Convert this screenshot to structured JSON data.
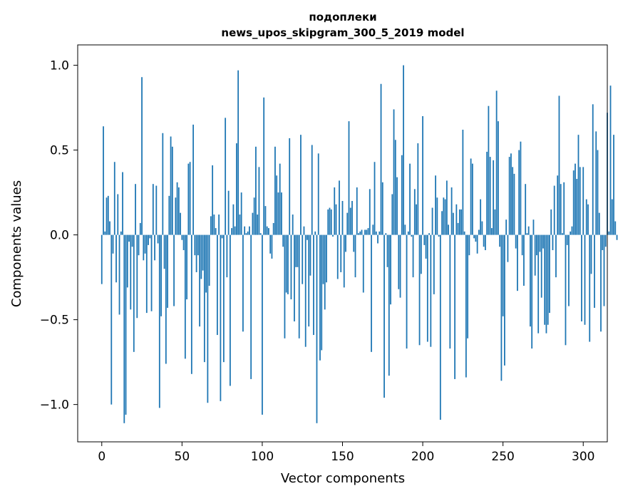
{
  "chart_data": {
    "type": "bar",
    "title": "подоплеки",
    "subtitle": "news_upos_skipgram_300_5_2019 model",
    "xlabel": "Vector components",
    "ylabel": "Components values",
    "xlim": [
      -15,
      315
    ],
    "ylim": [
      -1.22,
      1.12
    ],
    "x_ticks": [
      0,
      50,
      100,
      150,
      200,
      250,
      300
    ],
    "x_tick_labels": [
      "0",
      "50",
      "100",
      "150",
      "200",
      "250",
      "300"
    ],
    "y_ticks": [
      -1.0,
      -0.5,
      0.0,
      0.5,
      1.0
    ],
    "y_tick_labels": [
      "−1.0",
      "−0.5",
      "0.0",
      "0.5",
      "1.0"
    ],
    "grid": false,
    "bar_color": "#1f77b4",
    "series": [
      {
        "values": [
          -0.29,
          0.64,
          0.02,
          0.22,
          0.23,
          0.08,
          -1.0,
          -0.11,
          0.43,
          -0.28,
          0.24,
          -0.47,
          0.02,
          0.37,
          -1.11,
          -1.06,
          -0.31,
          -0.04,
          -0.44,
          -0.07,
          -0.69,
          0.3,
          -0.49,
          -0.12,
          0.07,
          0.93,
          -0.15,
          -0.11,
          -0.46,
          -0.06,
          -0.02,
          -0.45,
          0.3,
          -0.15,
          0.29,
          -0.05,
          -1.02,
          -0.48,
          0.6,
          -0.2,
          -0.76,
          -0.43,
          0.23,
          0.58,
          0.52,
          -0.42,
          0.22,
          0.31,
          0.28,
          0.13,
          -0.03,
          -0.09,
          -0.73,
          -0.38,
          0.42,
          0.43,
          -0.82,
          0.65,
          -0.12,
          -0.22,
          -0.12,
          -0.54,
          -0.26,
          -0.21,
          -0.75,
          -0.34,
          -0.99,
          -0.3,
          0.11,
          0.41,
          0.12,
          0.04,
          -0.59,
          0.12,
          -0.98,
          -0.02,
          -0.75,
          0.69,
          -0.25,
          0.26,
          -0.89,
          0.04,
          0.18,
          0.05,
          0.54,
          0.97,
          0.12,
          0.25,
          -0.57,
          0.05,
          0.01,
          0.02,
          0.05,
          -0.85,
          0.13,
          0.22,
          0.52,
          0.12,
          0.4,
          0.01,
          -1.06,
          0.81,
          0.17,
          0.05,
          0.04,
          -0.11,
          -0.14,
          0.07,
          0.52,
          0.35,
          0.25,
          0.42,
          0.25,
          -0.07,
          -0.61,
          -0.34,
          -0.35,
          0.57,
          -0.38,
          0.12,
          -0.51,
          -0.19,
          -0.19,
          -0.61,
          0.59,
          -0.29,
          0.05,
          -0.66,
          -0.03,
          -0.54,
          -0.24,
          0.53,
          -0.59,
          0.02,
          -1.11,
          0.48,
          -0.74,
          -0.68,
          -0.29,
          -0.44,
          -0.28,
          0.15,
          0.16,
          0.15,
          -0.01,
          0.28,
          0.18,
          -0.26,
          0.32,
          -0.22,
          0.2,
          -0.31,
          -0.1,
          0.13,
          0.67,
          0.16,
          0.2,
          -0.1,
          -0.25,
          0.28,
          0.01,
          0.02,
          0.03,
          -0.34,
          0.03,
          0.03,
          0.04,
          0.27,
          -0.69,
          0.06,
          0.43,
          0.02,
          -0.05,
          0.02,
          0.89,
          0.31,
          -0.96,
          0.01,
          -0.19,
          -0.83,
          -0.41,
          0.24,
          0.74,
          0.56,
          0.34,
          -0.32,
          -0.37,
          0.47,
          1.0,
          0.06,
          -0.67,
          0.02,
          0.42,
          -0.01,
          -0.25,
          0.27,
          0.18,
          0.54,
          -0.65,
          -0.23,
          0.7,
          -0.06,
          -0.14,
          -0.63,
          0.01,
          -0.66,
          0.16,
          -0.35,
          0.35,
          0.22,
          -0.01,
          -1.09,
          0.14,
          0.22,
          0.21,
          0.32,
          0.06,
          -0.67,
          0.28,
          0.13,
          -0.85,
          0.18,
          0.07,
          0.15,
          0.15,
          0.62,
          0.02,
          -0.84,
          -0.61,
          -0.12,
          0.45,
          0.42,
          -0.02,
          -0.04,
          -0.11,
          0.03,
          0.21,
          0.08,
          -0.07,
          -0.09,
          0.49,
          0.76,
          0.46,
          0.04,
          0.44,
          0.15,
          0.85,
          0.67,
          -0.07,
          -0.86,
          -0.48,
          -0.77,
          0.09,
          -0.16,
          0.46,
          0.48,
          0.4,
          0.36,
          -0.08,
          -0.33,
          0.5,
          0.55,
          -0.12,
          -0.3,
          0.3,
          0.01,
          0.05,
          -0.54,
          -0.67,
          0.09,
          -0.24,
          -0.12,
          -0.58,
          -0.1,
          -0.37,
          -0.08,
          -0.53,
          -0.58,
          -0.53,
          -0.46,
          0.15,
          -0.09,
          0.29,
          -0.25,
          0.35,
          0.82,
          0.3,
          0.01,
          0.31,
          -0.65,
          -0.06,
          -0.42,
          0.02,
          0.05,
          0.38,
          0.42,
          0.33,
          0.59,
          0.4,
          -0.51,
          0.4,
          -0.53,
          0.21,
          0.18,
          -0.63,
          -0.23,
          0.77,
          -0.43,
          0.61,
          0.5,
          0.13,
          -0.57,
          -0.09,
          -0.42,
          -0.07,
          0.72,
          0.02,
          0.88,
          0.21,
          0.59,
          0.08,
          -0.03
        ]
      }
    ]
  }
}
